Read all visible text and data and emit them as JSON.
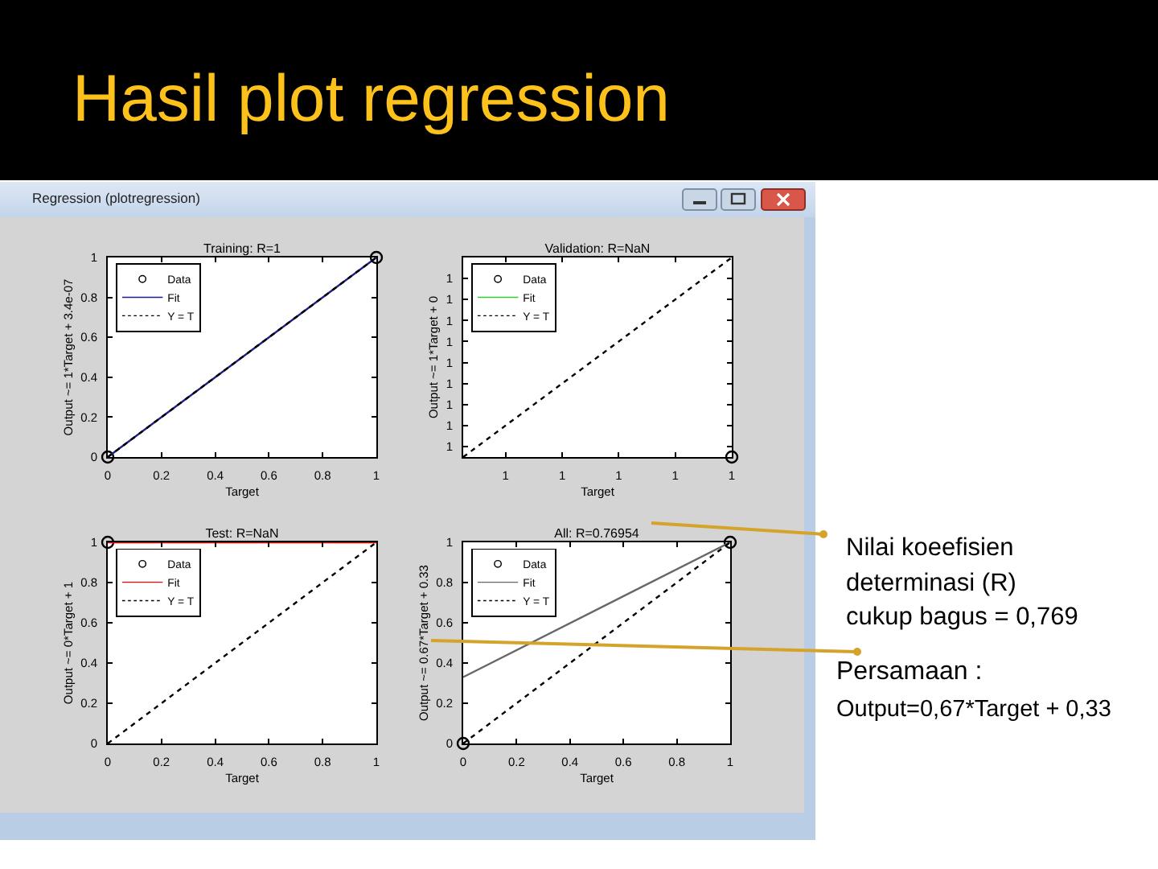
{
  "chart_data": [
    {
      "type": "scatter",
      "title": "Training: R=1",
      "xlabel": "Target",
      "ylabel": "Output ~= 1*Target + 3.4e-07",
      "xlim": [
        0,
        1
      ],
      "ylim": [
        0,
        1
      ],
      "xticks": [
        0,
        0.2,
        0.4,
        0.6,
        0.8,
        1
      ],
      "yticks": [
        0,
        0.2,
        0.4,
        0.6,
        0.8,
        1
      ],
      "legend": "top left",
      "series": [
        {
          "name": "Data",
          "type": "scatter",
          "marker": "circle",
          "color": "#000000",
          "x": [
            0,
            1
          ],
          "values": [
            0,
            1
          ]
        },
        {
          "name": "Fit",
          "type": "line",
          "line_style": "solid",
          "color": "#1c1c8a",
          "x": [
            0,
            1
          ],
          "values": [
            0,
            1
          ]
        },
        {
          "name": "Y = T",
          "type": "line",
          "line_style": "dotted",
          "color": "#000000",
          "x": [
            0,
            1
          ],
          "values": [
            0,
            1
          ]
        }
      ]
    },
    {
      "type": "scatter",
      "title": "Validation: R=NaN",
      "xlabel": "Target",
      "ylabel": "Output ~= 1*Target + 0",
      "xlim": [
        0.99999945,
        1.0000004
      ],
      "ylim": [
        0.99999945,
        1.0000004
      ],
      "xticks": [
        {
          "value": 0.9999996,
          "label": "1"
        },
        {
          "value": 0.9999998,
          "label": "1"
        },
        {
          "value": 1,
          "label": "1"
        },
        {
          "value": 1.0000002,
          "label": "1"
        },
        {
          "value": 1.0000004,
          "label": "1"
        }
      ],
      "yticks": [
        {
          "value": 0.9999995,
          "label": "1"
        },
        {
          "value": 0.9999996,
          "label": "1"
        },
        {
          "value": 0.9999997,
          "label": "1"
        },
        {
          "value": 0.9999998,
          "label": "1"
        },
        {
          "value": 0.9999999,
          "label": "1"
        },
        {
          "value": 1,
          "label": "1"
        },
        {
          "value": 1.0000001,
          "label": "1"
        },
        {
          "value": 1.0000002,
          "label": "1"
        },
        {
          "value": 1.0000003,
          "label": "1"
        }
      ],
      "legend": "top left",
      "series": [
        {
          "name": "Data",
          "type": "scatter",
          "marker": "circle",
          "color": "#000000",
          "x": [
            1.0000004
          ],
          "values": [
            0.99999945
          ]
        },
        {
          "name": "Fit",
          "type": "line",
          "line_style": "solid",
          "color": "#33cc33"
        },
        {
          "name": "Y = T",
          "type": "line",
          "line_style": "dotted",
          "color": "#000000",
          "x": [
            0.99999945,
            1.0000004
          ],
          "values": [
            0.99999945,
            1.0000004
          ]
        }
      ]
    },
    {
      "type": "scatter",
      "title": "Test: R=NaN",
      "xlabel": "Target",
      "ylabel": "Output ~= 0*Target + 1",
      "xlim": [
        0,
        1
      ],
      "ylim": [
        0,
        1
      ],
      "xticks": [
        0,
        0.2,
        0.4,
        0.6,
        0.8,
        1
      ],
      "yticks": [
        0,
        0.2,
        0.4,
        0.6,
        0.8,
        1
      ],
      "legend": "top left",
      "series": [
        {
          "name": "Data",
          "type": "scatter",
          "marker": "circle",
          "color": "#000000",
          "x": [
            0
          ],
          "values": [
            1
          ]
        },
        {
          "name": "Fit",
          "type": "line",
          "line_style": "solid",
          "color": "#ff0000",
          "x": [
            0,
            1
          ],
          "values": [
            1,
            1
          ]
        },
        {
          "name": "Y = T",
          "type": "line",
          "line_style": "dotted",
          "color": "#000000",
          "x": [
            0,
            1
          ],
          "values": [
            0,
            1
          ]
        }
      ]
    },
    {
      "type": "scatter",
      "title": "All: R=0.76954",
      "xlabel": "Target",
      "ylabel": "Output ~= 0.67*Target + 0.33",
      "xlim": [
        0,
        1
      ],
      "ylim": [
        0,
        1
      ],
      "xticks": [
        0,
        0.2,
        0.4,
        0.6,
        0.8,
        1
      ],
      "yticks": [
        0,
        0.2,
        0.4,
        0.6,
        0.8,
        1
      ],
      "legend": "top left",
      "series": [
        {
          "name": "Data",
          "type": "scatter",
          "marker": "circle",
          "color": "#000000",
          "x": [
            0,
            1
          ],
          "values": [
            0,
            1
          ]
        },
        {
          "name": "Fit",
          "type": "line",
          "line_style": "solid",
          "color": "#666666",
          "x": [
            0,
            1
          ],
          "values": [
            0.33,
            1
          ]
        },
        {
          "name": "Y = T",
          "type": "line",
          "line_style": "dotted",
          "color": "#000000",
          "x": [
            0,
            1
          ],
          "values": [
            0,
            1
          ]
        }
      ]
    },
    {
      "type": "other",
      "title": "Hasil plot regression",
      "annotations": [
        "Regression (plotregression)",
        "Nilai koeefisien determinasi (R) cukup bagus = 0,769",
        "Persamaan :",
        "Output=0,67*Target + 0,33"
      ]
    }
  ]
}
